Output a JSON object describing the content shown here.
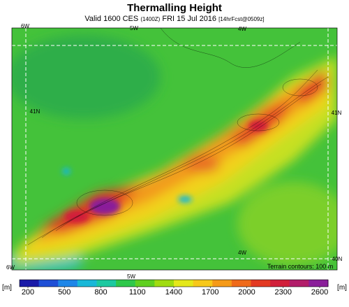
{
  "title": "Thermalling Height",
  "subtitle": {
    "valid": "Valid 1600 CES",
    "utc": "(1400Z)",
    "date": "FRI 15 Jul 2016",
    "forecast": "[14hrFcst@0509z]"
  },
  "map": {
    "labels": [
      "6W",
      "5W",
      "4W",
      "41N",
      "41N",
      "6W",
      "5W",
      "4W",
      "40N"
    ]
  },
  "footer": "Terrain contours: 100 m",
  "colorbar": {
    "unit": "[m]",
    "ticks": [
      200,
      500,
      800,
      1100,
      1400,
      1700,
      2000,
      2300,
      2600
    ],
    "colors": [
      "#1a1aa8",
      "#1f4fd6",
      "#1e86e8",
      "#19b8d8",
      "#1cc9a0",
      "#2ec84a",
      "#5fd020",
      "#a0dc10",
      "#e4e81a",
      "#f7c81a",
      "#f59a18",
      "#ef6a1a",
      "#e33a22",
      "#d11f3a",
      "#b21e6a",
      "#8a1f9a"
    ]
  }
}
